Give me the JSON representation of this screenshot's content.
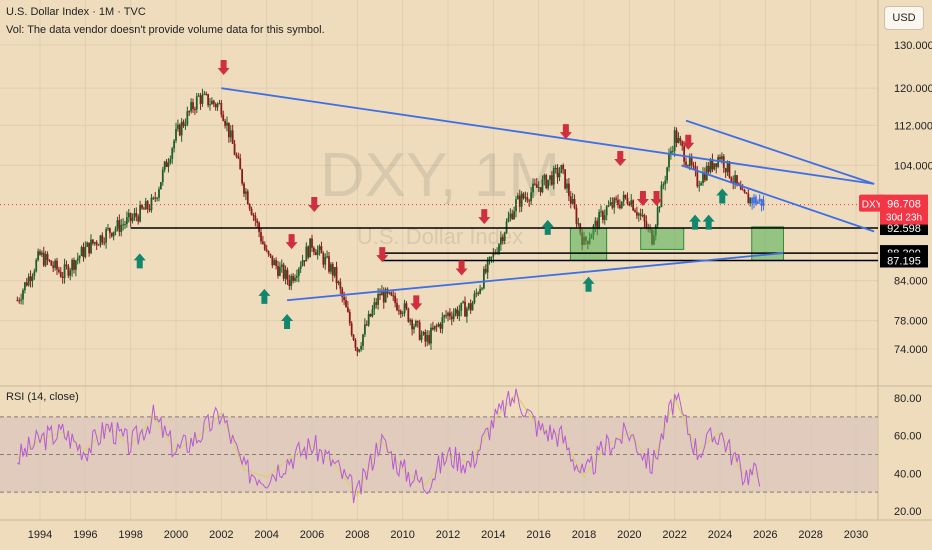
{
  "header": {
    "symbol_line": "U.S. Dollar Index · 1M · TVC",
    "volume_note": "Vol: The data vendor doesn't provide volume data for this symbol."
  },
  "currency_button": "USD",
  "watermark": {
    "ticker": "DXY, 1M",
    "name": "U.S. Dollar Index"
  },
  "rsi": {
    "label": "RSI (14, close)",
    "ticks": [
      "80.00",
      "60.00",
      "40.00",
      "20.00"
    ]
  },
  "price_axis": {
    "ticks": [
      "130.000",
      "120.000",
      "112.000",
      "104.000",
      "84.000",
      "78.000",
      "74.000"
    ],
    "level_labels": [
      {
        "value": "92.598",
        "bg": "#000000",
        "fg": "#ffffff"
      },
      {
        "value": "88.399",
        "bg": "#000000",
        "fg": "#ffffff"
      },
      {
        "value": "87.195",
        "bg": "#000000",
        "fg": "#ffffff"
      }
    ],
    "current": {
      "ticker": "DXY",
      "price": "96.708",
      "countdown": "30d 23h",
      "color": "#f23645"
    }
  },
  "time_axis": {
    "ticks": [
      "1994",
      "1996",
      "1998",
      "2000",
      "2002",
      "2004",
      "2006",
      "2008",
      "2010",
      "2012",
      "2014",
      "2016",
      "2018",
      "2020",
      "2022",
      "2024",
      "2026",
      "2028",
      "2030"
    ]
  },
  "colors": {
    "background": "#eedcbd",
    "up_candle": "#1e5e28",
    "down_candle": "#8b1a1a",
    "trendline": "#3f6fe6",
    "down_arrow": "#d0303d",
    "up_arrow": "#12876d",
    "rsi_line": "#b55bd6",
    "rsi_ma": "#d6d36a",
    "rsi_band": "#dcc7bb",
    "box_fill": "#4caf50"
  },
  "chart_data": {
    "type": "candlestick",
    "symbol": "DXY",
    "x": [
      1993,
      1994,
      1995,
      1996,
      1997,
      1998,
      1999,
      2000,
      2001,
      2002,
      2003,
      2004,
      2005,
      2006,
      2007,
      2008,
      2009,
      2010,
      2011,
      2012,
      2013,
      2014,
      2015,
      2016,
      2017,
      2018,
      2019,
      2020,
      2021,
      2022,
      2023,
      2024,
      2025,
      2026
    ],
    "price": [
      81,
      88,
      85,
      89,
      92,
      94,
      97,
      110,
      118,
      116,
      100,
      88,
      84,
      90,
      85,
      74,
      82,
      80,
      75,
      79,
      80,
      88,
      97,
      100,
      103,
      90,
      96,
      98,
      91,
      110,
      101,
      106,
      98,
      97
    ],
    "ylim": [
      70,
      133
    ],
    "rsi": [
      48,
      58,
      62,
      52,
      65,
      55,
      70,
      52,
      60,
      72,
      42,
      38,
      48,
      55,
      45,
      28,
      58,
      42,
      34,
      50,
      45,
      68,
      82,
      64,
      60,
      38,
      55,
      62,
      44,
      80,
      52,
      62,
      40,
      40
    ],
    "rsi_ylim": [
      15,
      85
    ],
    "rsi_levels": [
      70,
      50,
      30
    ],
    "horizontal_levels": [
      92.598,
      88.399,
      87.195
    ],
    "current_price": 96.708,
    "trendlines": [
      {
        "from": [
          2002,
          120
        ],
        "to": [
          2030.8,
          100.5
        ]
      },
      {
        "from": [
          2004.9,
          81
        ],
        "to": [
          2026.8,
          88.4
        ]
      },
      {
        "from": [
          2022.5,
          113
        ],
        "to": [
          2030.8,
          100.5
        ]
      },
      {
        "from": [
          2022.3,
          104
        ],
        "to": [
          2030.8,
          92
        ]
      }
    ],
    "down_arrows": [
      2002.1,
      2005.1,
      2006.1,
      2009.1,
      2010.6,
      2012.6,
      2013.6,
      2017.2,
      2019.6,
      2020.6,
      2021.2,
      2022.6
    ],
    "up_arrows": [
      1998.4,
      2003.9,
      2004.9,
      2016.4,
      2018.2,
      2022.9,
      2023.5,
      2024.1
    ]
  }
}
